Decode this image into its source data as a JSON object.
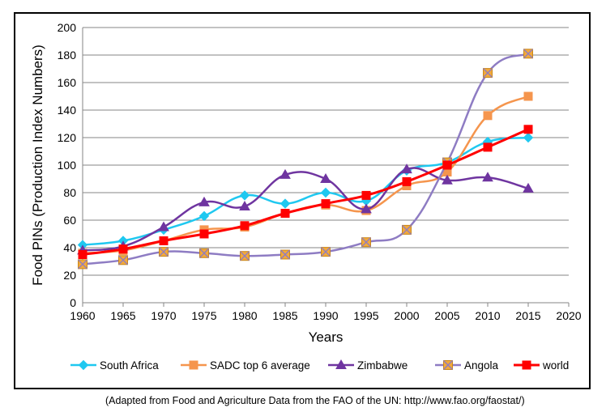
{
  "chart_data": {
    "type": "line",
    "title": "",
    "xlabel": "Years",
    "ylabel": "Food PINs (Production Index Numbers)",
    "xlim": [
      1960,
      2020
    ],
    "ylim": [
      0,
      200
    ],
    "x_ticks": [
      "1960",
      "1965",
      "1970",
      "1975",
      "1980",
      "1985",
      "1990",
      "1995",
      "2000",
      "2005",
      "2010",
      "2015",
      "2020"
    ],
    "y_ticks": [
      "0",
      "20",
      "40",
      "60",
      "80",
      "100",
      "120",
      "140",
      "160",
      "180",
      "200"
    ],
    "grid": "horizontal",
    "smooth": true,
    "legend_position": "bottom",
    "x": [
      1960,
      1965,
      1970,
      1975,
      1980,
      1985,
      1990,
      1995,
      2000,
      2005,
      2010,
      2015
    ],
    "series": [
      {
        "name": "South Africa",
        "color": "#1fc8f0",
        "marker": "diamond",
        "values": [
          42,
          45,
          53,
          63,
          78,
          72,
          80,
          74,
          96,
          102,
          117,
          120
        ]
      },
      {
        "name": "SADC top 6 average",
        "color": "#f5954d",
        "marker": "square",
        "values": [
          36,
          38,
          45,
          53,
          55,
          65,
          71,
          67,
          85,
          95,
          136,
          150
        ]
      },
      {
        "name": "Zimbabwe",
        "color": "#6f35a0",
        "marker": "triangle",
        "values": [
          38,
          41,
          55,
          73,
          70,
          93,
          90,
          68,
          97,
          89,
          91,
          83
        ]
      },
      {
        "name": "Angola",
        "color": "#8e7cc3",
        "marker": "xsquare",
        "marker_fill": "#f2a93b",
        "values": [
          28,
          31,
          37,
          36,
          34,
          35,
          37,
          44,
          53,
          102,
          167,
          181
        ]
      },
      {
        "name": "world",
        "color": "#ff0000",
        "marker": "square",
        "values": [
          35,
          39,
          45,
          50,
          56,
          65,
          72,
          78,
          88,
          100,
          113,
          126
        ]
      }
    ]
  },
  "source_note": "(Adapted from Food and Agriculture Data from the FAO of the UN: http://www.fao.org/faostat/)"
}
